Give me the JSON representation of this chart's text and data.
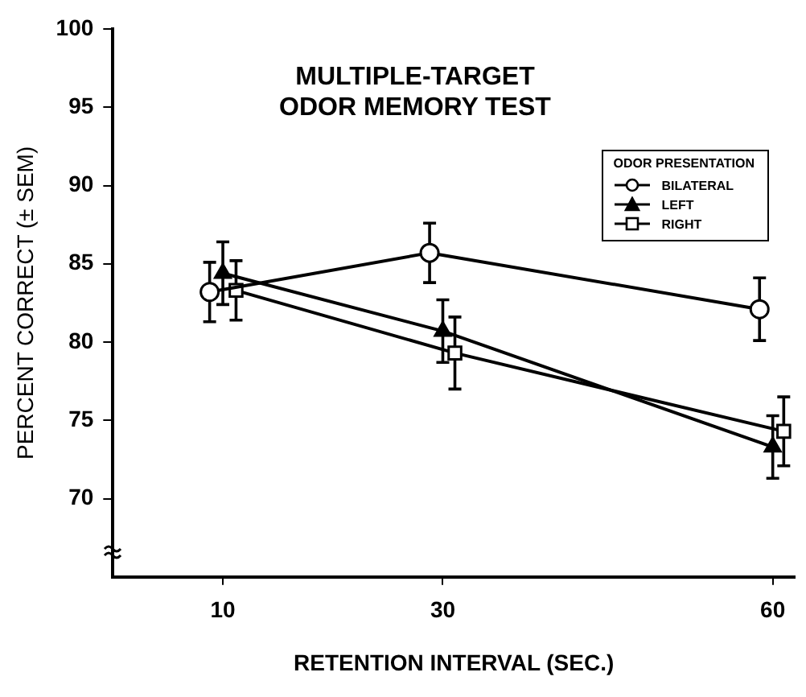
{
  "chart_data": {
    "type": "line",
    "title": "MULTIPLE-TARGET\nODOR MEMORY TEST",
    "xlabel": "RETENTION INTERVAL (SEC.)",
    "ylabel": "PERCENT CORRECT (± SEM)",
    "legend_title": "ODOR PRESENTATION",
    "legend": "top right",
    "grid": false,
    "xlim": [
      0,
      62
    ],
    "xticks": [
      10,
      30,
      60
    ],
    "ylim": [
      65,
      100
    ],
    "yticks": [
      70,
      75,
      80,
      85,
      90,
      95,
      100
    ],
    "series": [
      {
        "name": "BILATERAL",
        "color": "#000000",
        "marker": "circle",
        "x": [
          8.8,
          28.8,
          58.8
        ],
        "values": [
          83.2,
          85.7,
          82.1
        ],
        "errors": [
          1.9,
          1.9,
          2.0
        ]
      },
      {
        "name": "LEFT",
        "color": "#000000",
        "marker": "triangle",
        "x": [
          10,
          30,
          60
        ],
        "values": [
          84.4,
          80.7,
          73.3
        ],
        "errors": [
          2.0,
          2.0,
          2.0
        ]
      },
      {
        "name": "RIGHT",
        "color": "#000000",
        "marker": "square",
        "x": [
          11.2,
          31.1,
          61
        ],
        "values": [
          83.3,
          79.3,
          74.3
        ],
        "errors": [
          1.9,
          2.3,
          2.2
        ]
      }
    ]
  }
}
